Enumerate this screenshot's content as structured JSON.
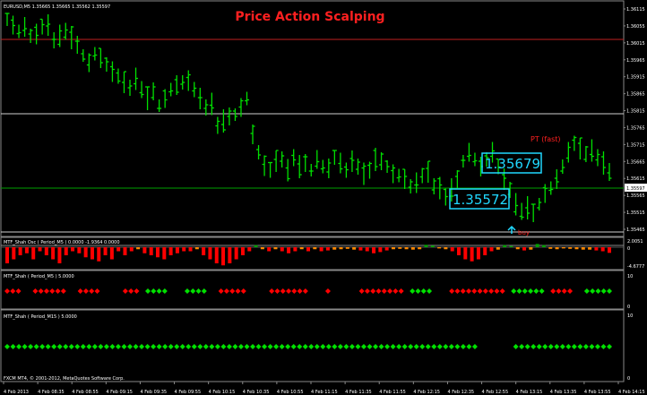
{
  "chart_title": "Price Action Scalping",
  "main_panel": {
    "symbol_info": "EURUSD,M5  1.35665 1.35665 1.35562 1.35597",
    "price_axis": [
      "1.36115",
      "1.36055",
      "1.36015",
      "1.35965",
      "1.35915",
      "1.35865",
      "1.35815",
      "1.35765",
      "1.35715",
      "1.35665",
      "1.35615",
      "1.35565",
      "1.35515",
      "1.35465"
    ],
    "current_price_tag": "1.35597",
    "bottom_price_tag": "1.35465",
    "annotation_upper": "1.35679",
    "annotation_lower": "1.35572",
    "pt_label": "PT (fast)",
    "buy_label": "buy"
  },
  "osc_panel": {
    "label": "MTF_Shah Osc ( Period_M5 )  0.0000 -1.9364 0.0000",
    "axis_top": "2.0051",
    "axis_zero": "0",
    "axis_bottom": "-4.6777"
  },
  "dots_panel_1": {
    "label": "MTF_Shah ( Period_M5 )  5.0000",
    "axis_top": "10",
    "axis_bottom": "0"
  },
  "dots_panel_2": {
    "label": "MTF_Shah ( Period_M15 )  5.0000",
    "axis_top": "10",
    "axis_bottom": "0"
  },
  "copyright": "FXCM MT4, © 2001-2012, MetaQuotes Software Corp.",
  "time_axis": [
    "4 Feb 2013",
    "4 Feb 08:35",
    "4 Feb 08:55",
    "4 Feb 09:15",
    "4 Feb 09:35",
    "4 Feb 09:55",
    "4 Feb 10:15",
    "4 Feb 10:35",
    "4 Feb 10:55",
    "4 Feb 11:15",
    "4 Feb 11:35",
    "4 Feb 11:55",
    "4 Feb 12:15",
    "4 Feb 12:35",
    "4 Feb 12:55",
    "4 Feb 13:15",
    "4 Feb 13:35",
    "4 Feb 13:55",
    "4 Feb 14:15"
  ],
  "colors": {
    "bar": "#00e000",
    "title": "#ff2020",
    "annotation": "#20d8ff",
    "grid": "#808080",
    "hist_red": "#ff0000",
    "hist_orange": "#ff8800",
    "hist_green": "#00a000",
    "dot_red": "#ff0000",
    "dot_green": "#00e000"
  }
}
